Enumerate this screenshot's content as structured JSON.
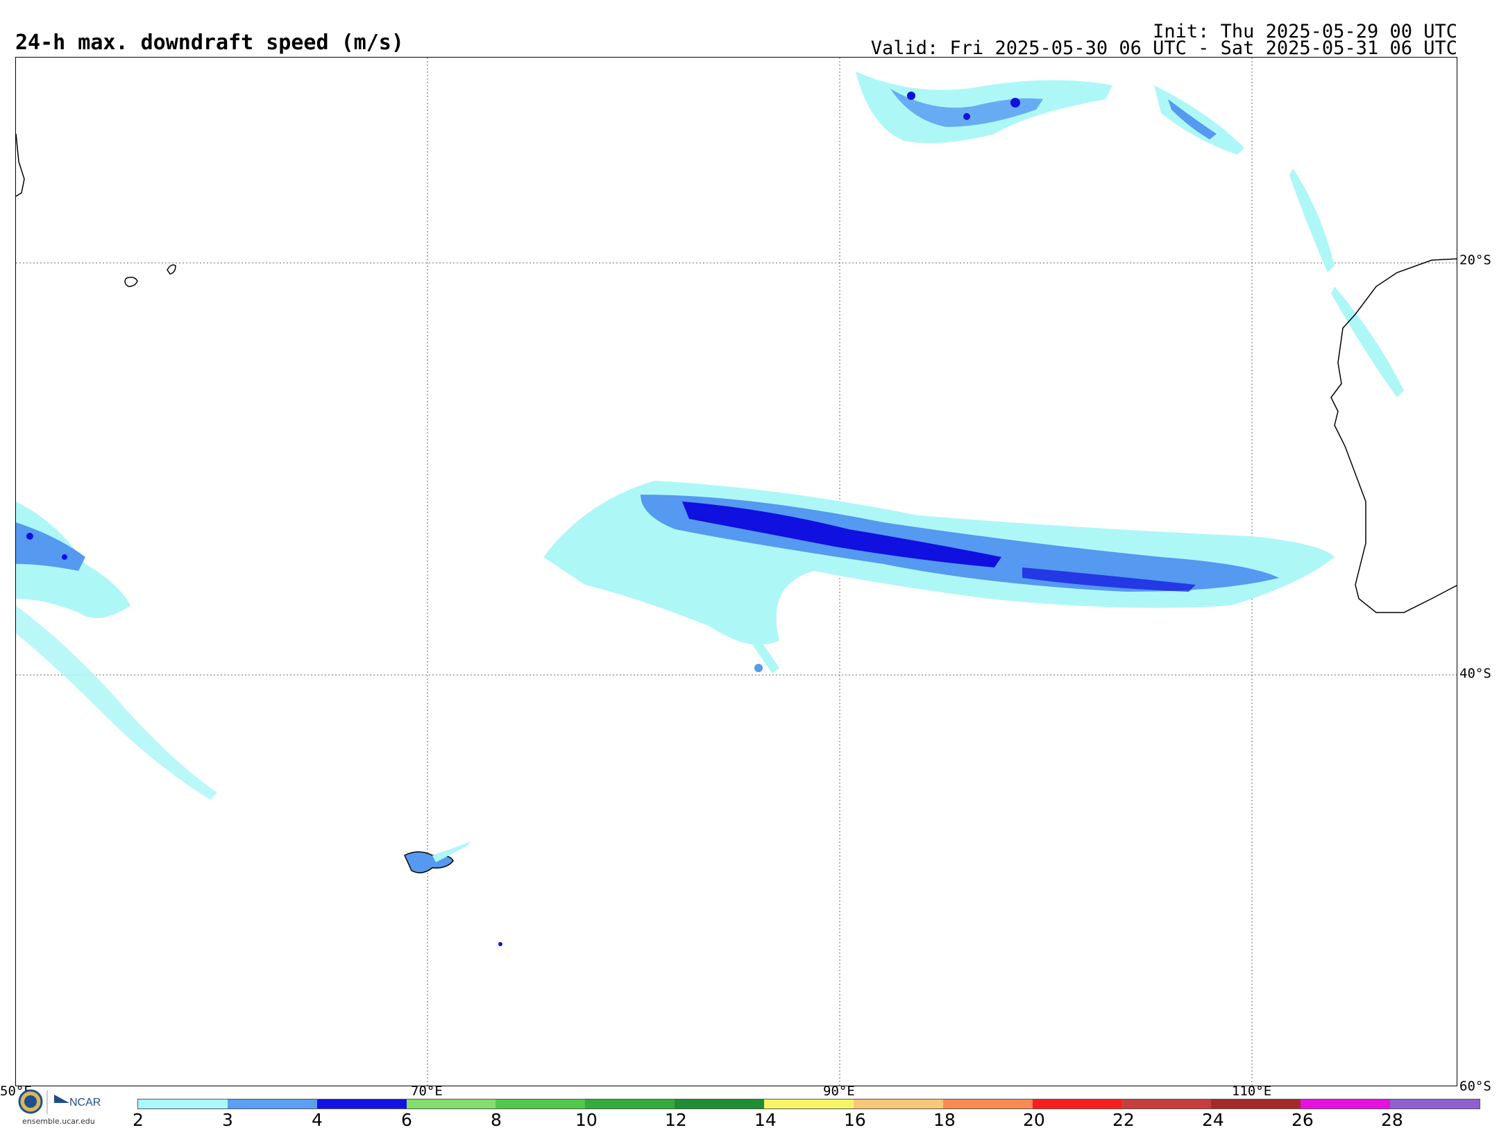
{
  "header": {
    "title": "24-h max. downdraft speed (m/s)",
    "init": "Init: Thu 2025-05-29 00 UTC",
    "valid": "Valid: Fri 2025-05-30 06 UTC - Sat 2025-05-31 06 UTC"
  },
  "map": {
    "lat_labels": [
      "20°S",
      "40°S",
      "60°S"
    ],
    "lon_labels": [
      "50°E",
      "70°E",
      "90°E",
      "110°E"
    ],
    "field_colors": {
      "2-3": "#aef7f7",
      "3-4": "#5599f0",
      "4-6": "#1010e0"
    }
  },
  "colorbar": {
    "colors": [
      "#aaf8f8",
      "#5aa0f2",
      "#1212e6",
      "#82e06a",
      "#52c84a",
      "#32ac3a",
      "#1f8e32",
      "#f6f664",
      "#f8c878",
      "#f88a52",
      "#f81e1e",
      "#c83e3e",
      "#a42a2a",
      "#e810e0",
      "#9060d0"
    ],
    "labels": [
      "2",
      "3",
      "4",
      "6",
      "8",
      "10",
      "12",
      "14",
      "16",
      "18",
      "20",
      "22",
      "24",
      "26",
      "28"
    ]
  },
  "logo": {
    "org": "NCAR",
    "url": "ensemble.ucar.edu"
  }
}
